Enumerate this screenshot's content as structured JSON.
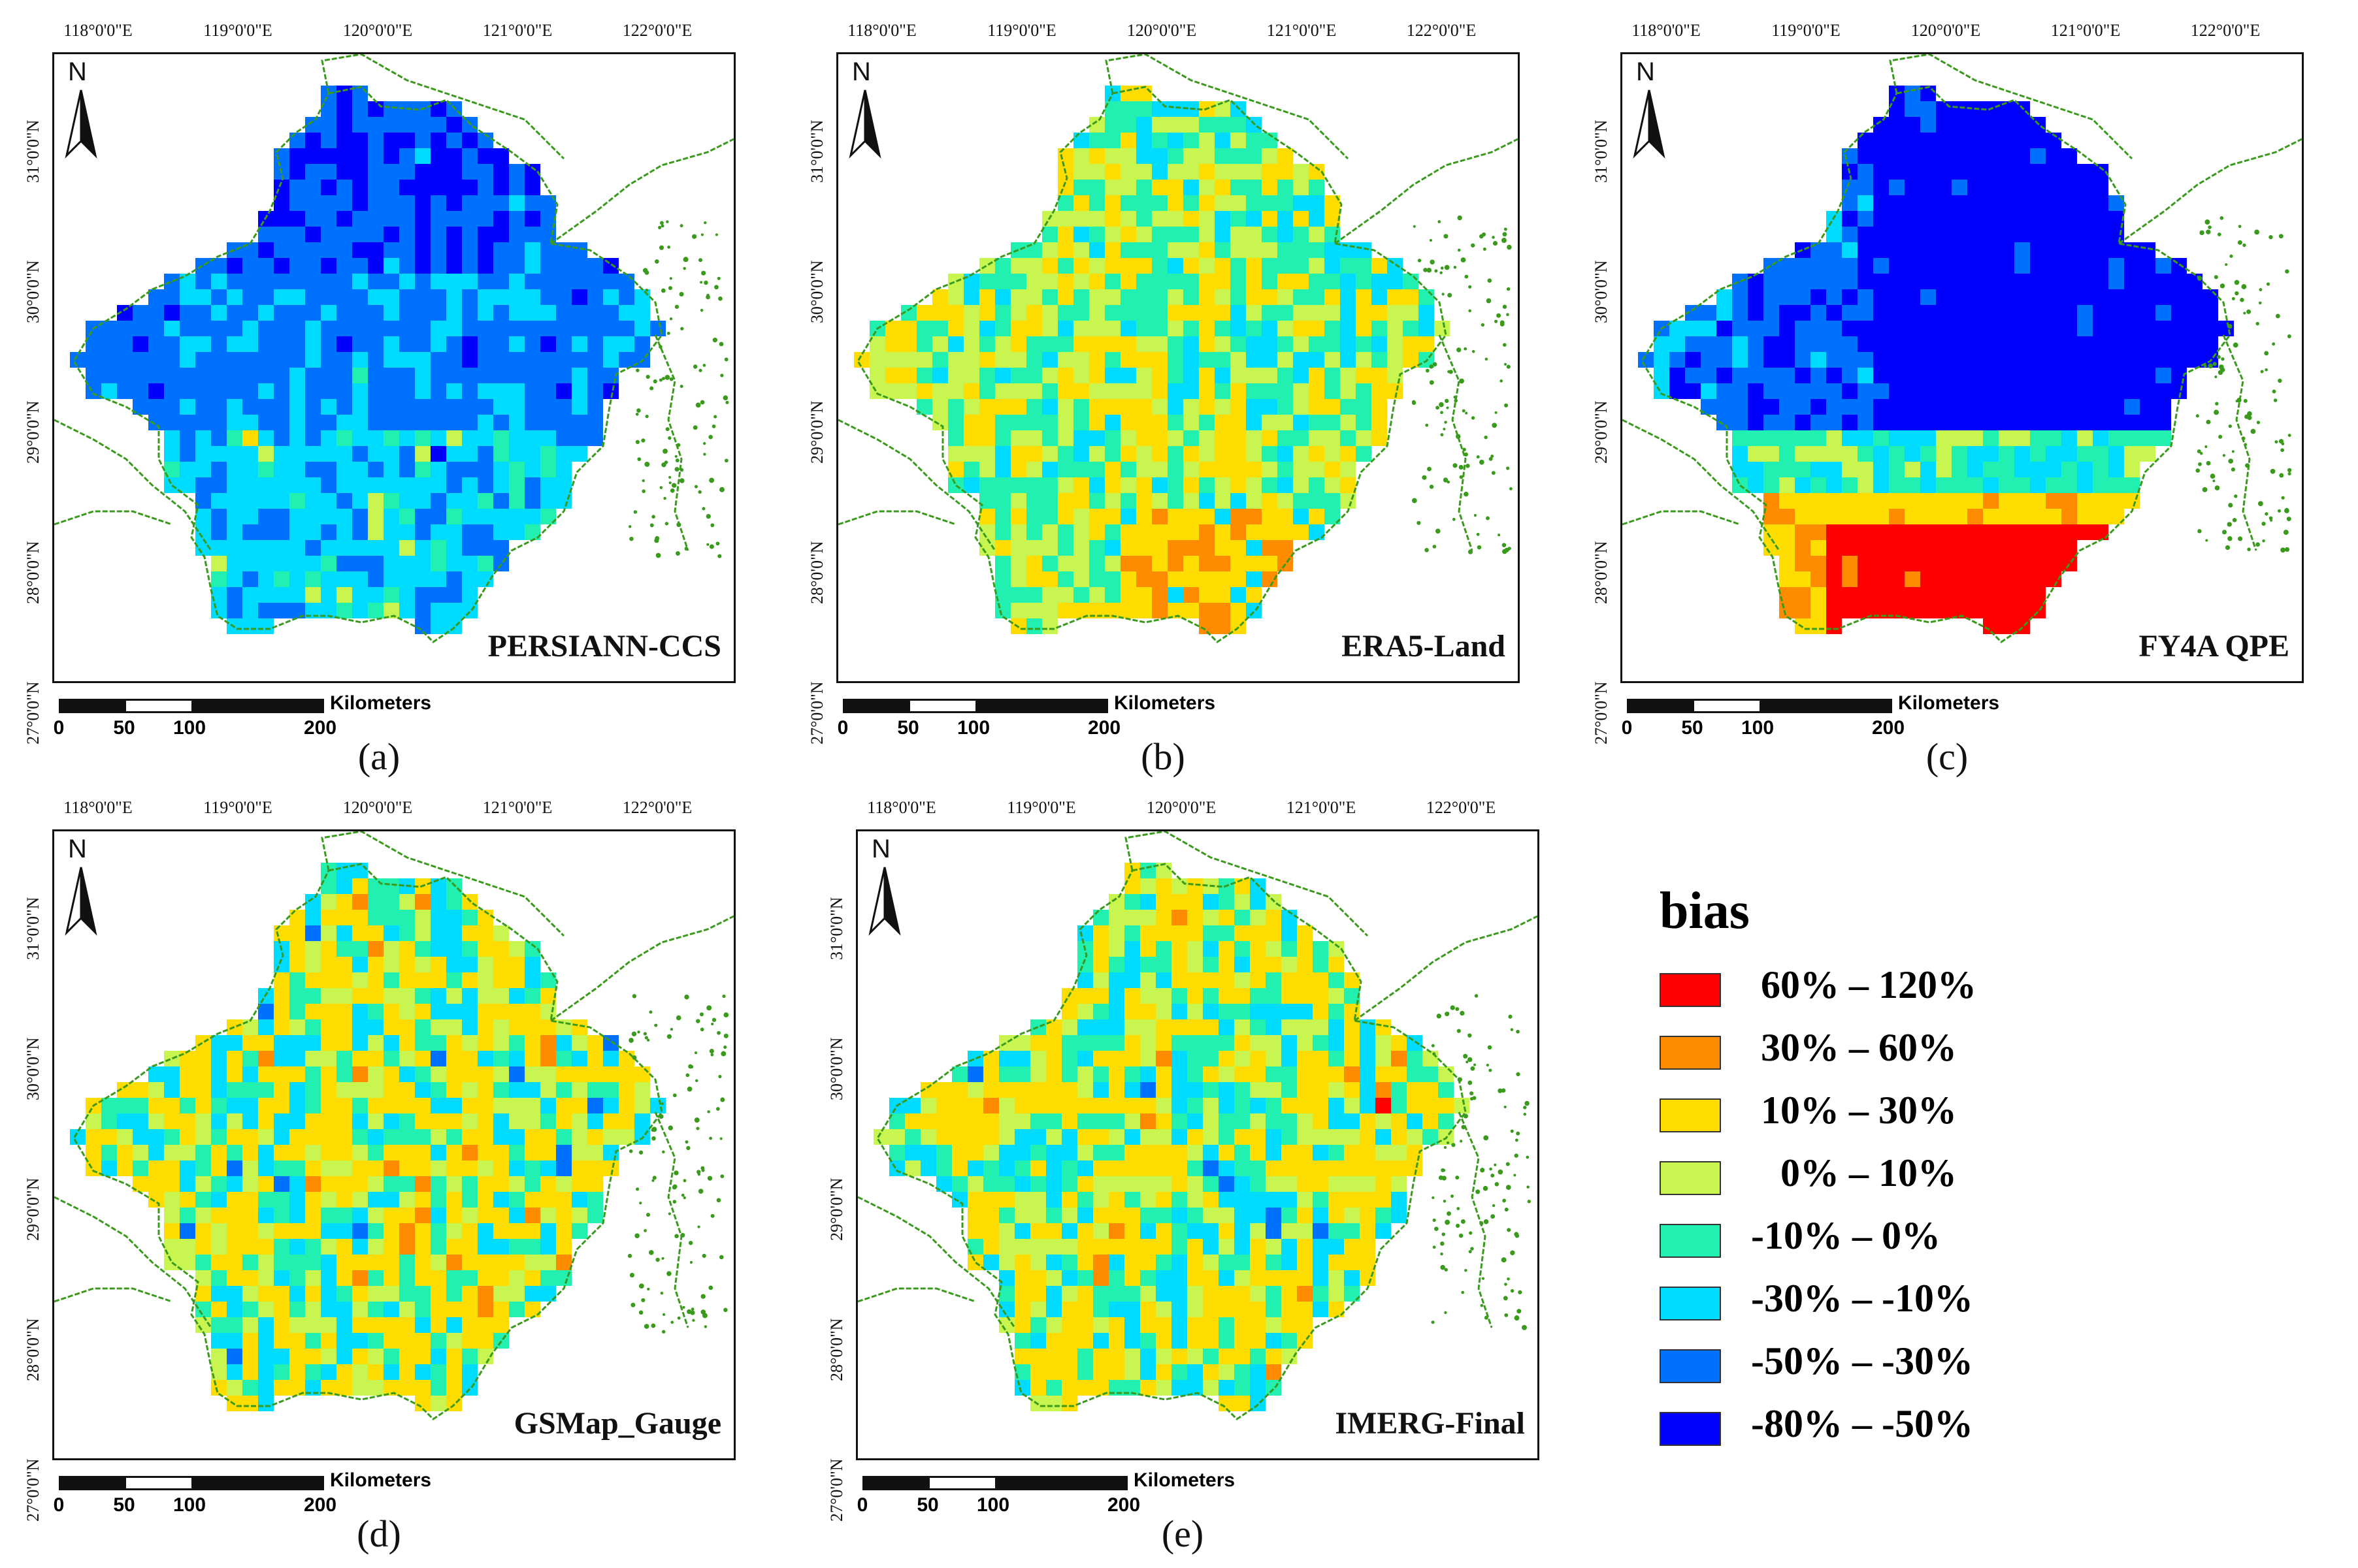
{
  "axes": {
    "lon_labels": [
      "118°0'0\"E",
      "119°0'0\"E",
      "120°0'0\"E",
      "121°0'0\"E",
      "122°0'0\"E"
    ],
    "lat_labels": [
      "31°0'0\"N",
      "30°0'0\"N",
      "29°0'0\"N",
      "28°0'0\"N",
      "27°0'0\"N"
    ]
  },
  "north_label": "N",
  "scale": {
    "unit": "Kilometers",
    "ticks": [
      "0",
      "50",
      "100",
      "200"
    ]
  },
  "panels": [
    {
      "label": "PERSIANN-CCS",
      "caption": "(a)",
      "scheme": "blue"
    },
    {
      "label": "ERA5-Land",
      "caption": "(b)",
      "scheme": "mixed_warm"
    },
    {
      "label": "FY4A QPE",
      "caption": "(c)",
      "scheme": "north_blue_south_red"
    },
    {
      "label": "GSMap_Gauge",
      "caption": "(d)",
      "scheme": "mixed_yellow"
    },
    {
      "label": "IMERG-Final",
      "caption": "(e)",
      "scheme": "mixed_yellow"
    }
  ],
  "legend": {
    "title": "bias",
    "items": [
      {
        "label": " 60% – 120%",
        "color": "#ff0000"
      },
      {
        "label": " 30% – 60%",
        "color": "#ff8c00"
      },
      {
        "label": " 10% – 30%",
        "color": "#ffdd00"
      },
      {
        "label": "   0% – 10%",
        "color": "#c8f550"
      },
      {
        "label": "-10% – 0%",
        "color": "#22f0b0"
      },
      {
        "label": "-30% – -10%",
        "color": "#00dcff"
      },
      {
        "label": "-50% – -30%",
        "color": "#0070ff"
      },
      {
        "label": "-80% – -50%",
        "color": "#0000ff"
      }
    ]
  },
  "colors": {
    "coast": "#3a9a1c",
    "frame": "#111111"
  }
}
